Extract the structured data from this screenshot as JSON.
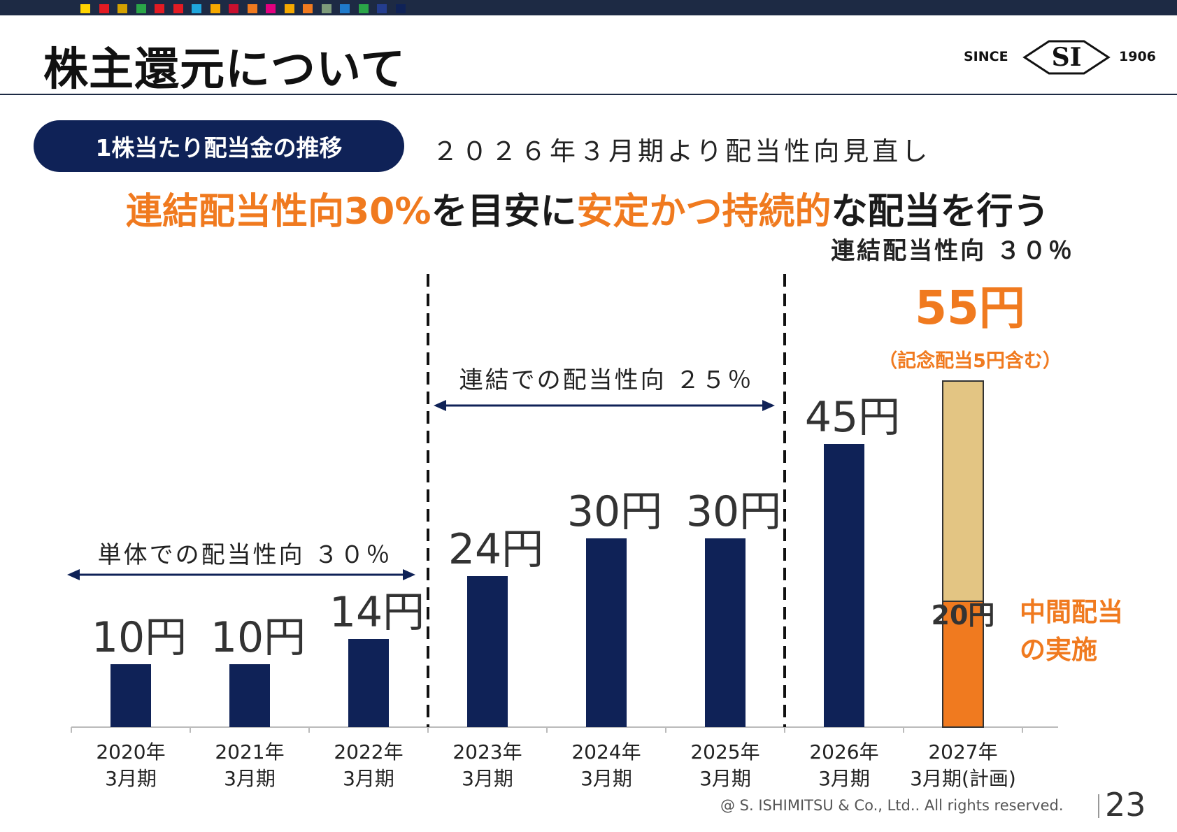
{
  "page": {
    "title": "株主還元について",
    "logo": {
      "since": "SINCE",
      "mark": "SI",
      "year": "1906"
    },
    "pill_label": "1株当たり配当金の推移",
    "subtitle": "２０２６年３月期より配当性向見直し",
    "headline": {
      "p1": "連結配当性向30%",
      "p2": "を目安に",
      "p3": "安定かつ持続的",
      "p4": "な配当を行う"
    },
    "footer": "@ S. ISHIMITSU & Co., Ltd.. All rights reserved.",
    "page_number": "23",
    "colors": {
      "navy": "#0f2257",
      "orange": "#f07a1f",
      "gold": "#e3c583",
      "topbar": "#1d2a44"
    },
    "stripe_colors": [
      "#ffd400",
      "#e31b23",
      "#d4a100",
      "#2aa548",
      "#e31b23",
      "#e31b23",
      "#1fa6dd",
      "#f5a800",
      "#c8102e",
      "#f07a1f",
      "#e4007f",
      "#f5a800",
      "#f07a1f",
      "#7d9b7a",
      "#1f7acb",
      "#2aa548",
      "#243d8f",
      "#0f2257"
    ]
  },
  "chart_data": {
    "type": "bar",
    "categories": [
      [
        "2020年",
        "3月期"
      ],
      [
        "2021年",
        "3月期"
      ],
      [
        "2022年",
        "3月期"
      ],
      [
        "2023年",
        "3月期"
      ],
      [
        "2024年",
        "3月期"
      ],
      [
        "2025年",
        "3月期"
      ],
      [
        "2026年",
        "3月期"
      ],
      [
        "2027年",
        "3月期(計画)"
      ]
    ],
    "values": [
      10,
      10,
      14,
      24,
      30,
      30,
      45,
      55
    ],
    "value_labels": [
      "10円",
      "10円",
      "14円",
      "24円",
      "30円",
      "30円",
      "45円",
      "55円"
    ],
    "stacked_last": {
      "interim": 20,
      "interim_label": "20円",
      "interim_note": [
        "中間配当",
        "の実施"
      ],
      "total_note": "（記念配当5円含む）"
    },
    "ylim": [
      0,
      55
    ],
    "annotations": [
      {
        "text": "単体での配当性向 ３０％",
        "from": 0,
        "to": 2
      },
      {
        "text": "連結での配当性向 ２５％",
        "from": 3,
        "to": 5
      },
      {
        "text": "連結配当性向 ３０％",
        "from": 6,
        "to": 7
      }
    ],
    "grid": false,
    "legend": "none"
  }
}
